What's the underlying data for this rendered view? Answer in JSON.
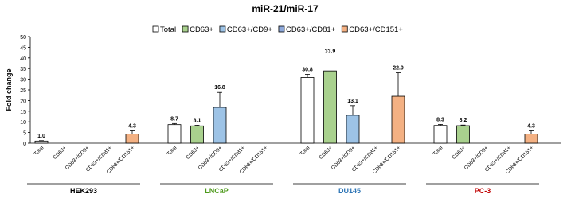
{
  "chart_data": {
    "type": "bar",
    "title": "miR-21/miR-17",
    "ylabel": "Fold change",
    "categories": [
      "HEK293",
      "LNCaP",
      "DU145",
      "PC-3"
    ],
    "category_colors": [
      "#000000",
      "#4e9a1c",
      "#2e75b6",
      "#c00000"
    ],
    "series": [
      {
        "name": "Total",
        "color": "#ffffff",
        "values": [
          1.0,
          8.7,
          30.8,
          8.3
        ],
        "errors": [
          0.2,
          0.5,
          1.5,
          0.5
        ],
        "value_labels": [
          "1.0",
          "8.7",
          "30.8",
          "8.3"
        ]
      },
      {
        "name": "CD63+",
        "color": "#a9d18e",
        "values": [
          null,
          8.1,
          33.9,
          8.2
        ],
        "errors": [
          null,
          0.3,
          7,
          0.3
        ],
        "value_labels": [
          null,
          "8.1",
          "33.9",
          "8.2"
        ]
      },
      {
        "name": "CD63+/CD9+",
        "color": "#9dc3e6",
        "values": [
          null,
          16.8,
          13.1,
          null
        ],
        "errors": [
          null,
          7,
          4.5,
          null
        ],
        "value_labels": [
          null,
          "16.8",
          "13.1",
          null
        ]
      },
      {
        "name": "CD63+/CD81+",
        "color": "#8ea9db",
        "values": [
          null,
          null,
          null,
          null
        ],
        "errors": [
          null,
          null,
          null,
          null
        ],
        "value_labels": [
          null,
          null,
          null,
          null
        ]
      },
      {
        "name": "CD63+/CD151+",
        "color": "#f4b183",
        "values": [
          4.3,
          null,
          22.0,
          4.3
        ],
        "errors": [
          1.5,
          null,
          11,
          1.5
        ],
        "value_labels": [
          "4.3",
          null,
          "22.0",
          "4.3"
        ]
      }
    ],
    "ylim": [
      0,
      50
    ],
    "yticks": [
      0,
      5,
      10,
      15,
      20,
      25,
      30,
      35,
      40,
      45,
      50
    ],
    "grid": false,
    "legend": "top"
  }
}
